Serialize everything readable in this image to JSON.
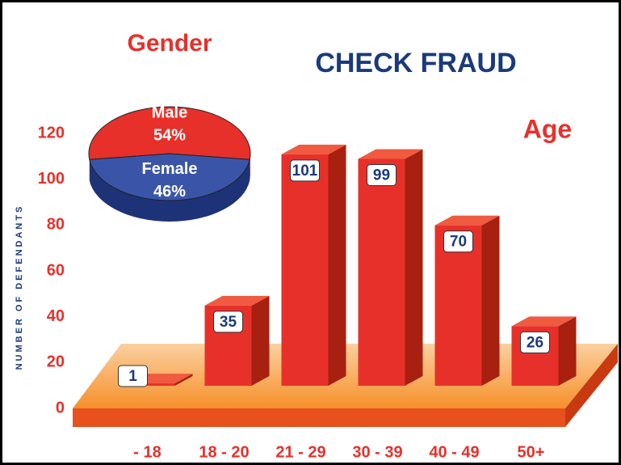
{
  "chart_data": [
    {
      "type": "bar",
      "title": "CHECK FRAUD",
      "subtitle": "Age",
      "y_label": "NUMBER OF DEFENDANTS",
      "categories": [
        "- 18",
        "18 - 20",
        "21 - 29",
        "30 - 39",
        "40 - 49",
        "50+"
      ],
      "values": [
        1,
        35,
        101,
        99,
        70,
        26
      ],
      "color": "#e8302a",
      "ylim": [
        0,
        120
      ],
      "yticks": [
        0,
        20,
        40,
        60,
        80,
        100,
        120
      ]
    },
    {
      "type": "pie",
      "title": "Gender",
      "categories": [
        "Male",
        "Female"
      ],
      "values": [
        54,
        46
      ],
      "value_labels": [
        "54%",
        "46%"
      ],
      "colors": [
        "#e8302a",
        "#3a55a8"
      ]
    }
  ]
}
